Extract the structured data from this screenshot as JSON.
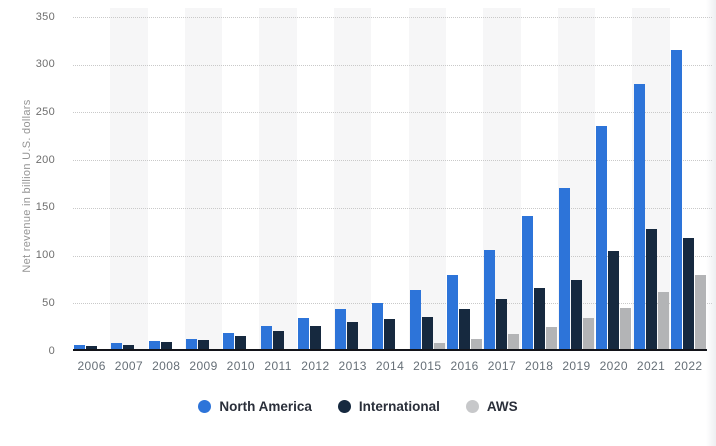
{
  "chart_data": {
    "type": "bar",
    "title": "",
    "xlabel": "",
    "ylabel": "Net revenue in billion U.S. dollars",
    "ylim": [
      0,
      350
    ],
    "yticks": [
      0,
      50,
      100,
      150,
      200,
      250,
      300,
      350
    ],
    "grid": "horizontal-dotted",
    "legend_position": "bottom",
    "categories": [
      "2006",
      "2007",
      "2008",
      "2009",
      "2010",
      "2011",
      "2012",
      "2013",
      "2014",
      "2015",
      "2016",
      "2017",
      "2018",
      "2019",
      "2020",
      "2021",
      "2022"
    ],
    "series": [
      {
        "name": "North America",
        "color": "#2d74d9",
        "legend_color": "#2d74d9",
        "values": [
          5.87,
          8.1,
          10.23,
          12.83,
          18.71,
          26.71,
          34.81,
          44.52,
          50.83,
          63.71,
          79.78,
          106.11,
          141.37,
          170.77,
          236.28,
          279.83,
          315.88
        ]
      },
      {
        "name": "International",
        "color": "#16293f",
        "legend_color": "#16293f",
        "values": [
          4.84,
          6.74,
          8.94,
          11.68,
          15.5,
          21.37,
          26.28,
          29.93,
          33.52,
          35.42,
          43.98,
          54.3,
          65.87,
          74.72,
          104.41,
          127.79,
          118.01
        ]
      },
      {
        "name": "AWS",
        "color": "#b3b4b6",
        "legend_color": "#c7c8ca",
        "values": [
          null,
          null,
          null,
          null,
          null,
          null,
          null,
          null,
          null,
          7.88,
          12.22,
          17.46,
          25.66,
          35.03,
          45.37,
          62.2,
          80.1
        ]
      }
    ],
    "band_colors": {
      "even": "#ffffff",
      "odd": "#f6f6f7"
    },
    "axis_color": "#121319",
    "gridline_color": "#c9c9c9"
  }
}
